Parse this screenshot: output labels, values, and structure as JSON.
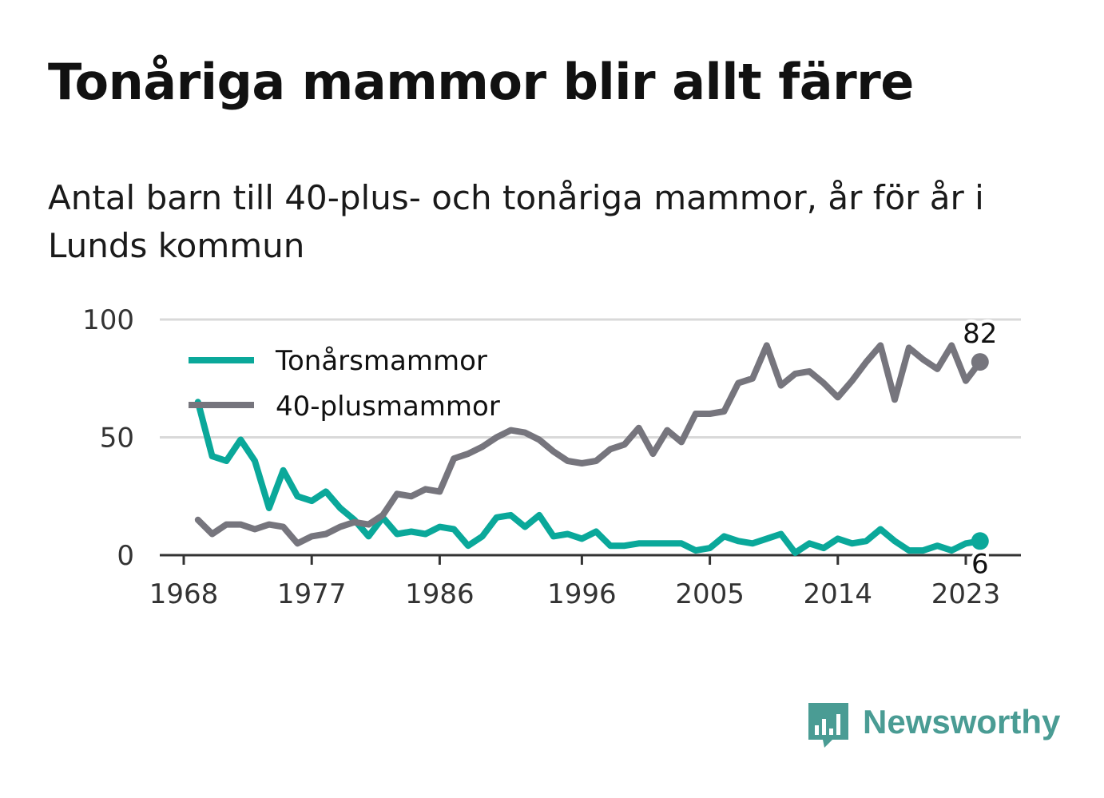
{
  "title": "Tonåriga mammor blir allt färre",
  "subtitle": "Antal barn till 40-plus- och tonåriga mammor, år för år i Lunds kommun",
  "brand": {
    "name": "Newsworthy",
    "color": "#4a9c94",
    "icon": "bar-chart-speech-bubble-icon"
  },
  "chart_data": {
    "type": "line",
    "title": "Tonåriga mammor blir allt färre",
    "subtitle": "Antal barn till 40-plus- och tonåriga mammor, år för år i Lunds kommun",
    "xlabel": "",
    "ylabel": "",
    "xlim": [
      1968,
      2026
    ],
    "ylim": [
      0,
      100
    ],
    "x_ticks": [
      1968,
      1977,
      1986,
      1996,
      2005,
      2014,
      2023
    ],
    "y_ticks": [
      0,
      50,
      100
    ],
    "grid": true,
    "legend_position": "top-left",
    "x": [
      1969,
      1970,
      1971,
      1972,
      1973,
      1974,
      1975,
      1976,
      1977,
      1978,
      1979,
      1980,
      1981,
      1982,
      1983,
      1984,
      1985,
      1986,
      1987,
      1988,
      1989,
      1990,
      1991,
      1992,
      1993,
      1994,
      1995,
      1996,
      1997,
      1998,
      1999,
      2000,
      2001,
      2002,
      2003,
      2004,
      2005,
      2006,
      2007,
      2008,
      2009,
      2010,
      2011,
      2012,
      2013,
      2014,
      2015,
      2016,
      2017,
      2018,
      2019,
      2020,
      2021,
      2022,
      2023,
      2024
    ],
    "series": [
      {
        "name": "Tonårsmammor",
        "color": "#0aa89a",
        "end_label": "6",
        "values": [
          65,
          42,
          40,
          49,
          40,
          20,
          36,
          25,
          23,
          27,
          20,
          15,
          8,
          16,
          9,
          10,
          9,
          12,
          11,
          4,
          8,
          16,
          17,
          12,
          17,
          8,
          9,
          7,
          10,
          4,
          4,
          5,
          5,
          5,
          5,
          2,
          3,
          8,
          6,
          5,
          7,
          9,
          1,
          5,
          3,
          7,
          5,
          6,
          11,
          6,
          2,
          2,
          4,
          2,
          5,
          6
        ]
      },
      {
        "name": "40-plusmammor",
        "color": "#76757d",
        "end_label": "82",
        "values": [
          15,
          9,
          13,
          13,
          11,
          13,
          12,
          5,
          8,
          9,
          12,
          14,
          13,
          17,
          26,
          25,
          28,
          27,
          41,
          43,
          46,
          50,
          53,
          52,
          49,
          44,
          40,
          39,
          40,
          45,
          47,
          54,
          43,
          53,
          48,
          60,
          60,
          61,
          73,
          75,
          89,
          72,
          77,
          78,
          73,
          67,
          74,
          82,
          89,
          66,
          88,
          83,
          79,
          89,
          74,
          82
        ]
      }
    ]
  }
}
